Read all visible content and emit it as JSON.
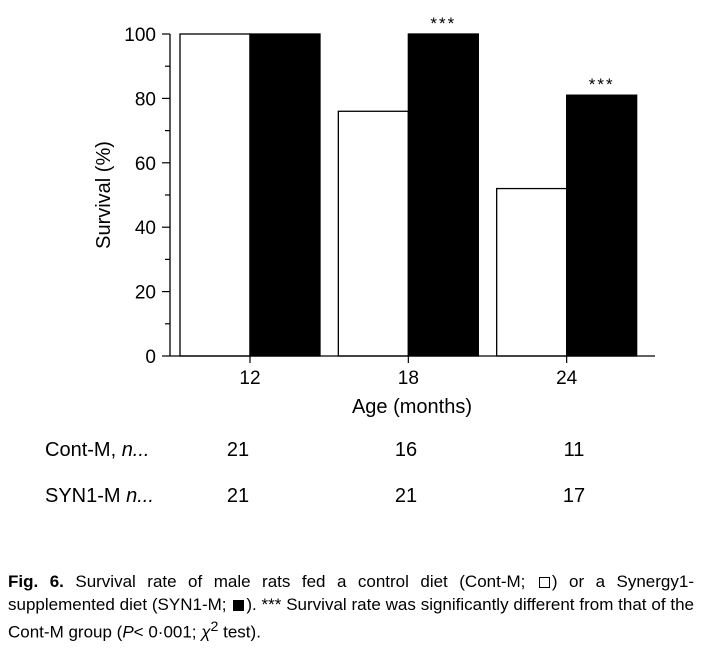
{
  "chart_data": {
    "type": "bar",
    "categories": [
      "12",
      "18",
      "24"
    ],
    "series": [
      {
        "name": "Cont-M",
        "values": [
          100,
          76,
          52
        ],
        "color": "#ffffff"
      },
      {
        "name": "SYN1-M",
        "values": [
          100,
          100,
          81
        ],
        "color": "#000000"
      }
    ],
    "xlabel": "Age (months)",
    "ylabel": "Survival (%)",
    "ylim": [
      0,
      100
    ],
    "yticks": [
      "0",
      "20",
      "40",
      "60",
      "80",
      "100"
    ],
    "significance": [
      "",
      "***",
      "***"
    ],
    "grid": false
  },
  "table": {
    "rows": [
      {
        "label": "Cont-M, ",
        "n": "n...",
        "values": [
          "21",
          "16",
          "11"
        ]
      },
      {
        "label": "SYN1-M ",
        "n": "n...",
        "values": [
          "21",
          "21",
          "17"
        ]
      }
    ]
  },
  "caption": {
    "label": "Fig. 6.",
    "text1": " Survival rate of male rats fed a control diet (Cont-M; ",
    "text2": ") or a Synergy1-supplemented diet (SYN1-M; ",
    "text3": "). *** Survival rate was significantly different from that of the Cont-M group (",
    "p": "P",
    "text4": "< 0·001; ",
    "chi": "χ",
    "sup": "2",
    "text5": " test)."
  }
}
